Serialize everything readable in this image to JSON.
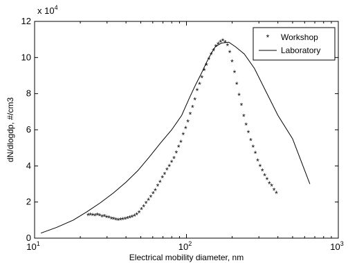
{
  "chart_data": {
    "type": "line",
    "xlabel": "Electrical mobility diameter, nm",
    "ylabel": "dN/dlogdp, #/cm3",
    "x_scale": "log",
    "xlim": [
      10,
      1000
    ],
    "ylim": [
      0,
      120000
    ],
    "y_multiplier_label": "x 10",
    "y_multiplier_exp": "4",
    "grid": false,
    "legend_position": "top-right",
    "x_ticks": [
      {
        "base": "10",
        "exp": "1",
        "value": 10
      },
      {
        "base": "10",
        "exp": "2",
        "value": 100
      },
      {
        "base": "10",
        "exp": "3",
        "value": 1000
      }
    ],
    "y_ticks": [
      {
        "label": "0",
        "value": 0
      },
      {
        "label": "2",
        "value": 20000
      },
      {
        "label": "4",
        "value": 40000
      },
      {
        "label": "6",
        "value": 60000
      },
      {
        "label": "8",
        "value": 80000
      },
      {
        "label": "10",
        "value": 100000
      },
      {
        "label": "12",
        "value": 120000
      }
    ],
    "series": [
      {
        "name": "Workshop",
        "style": "markers",
        "marker": "*",
        "x": [
          22.5,
          23.3,
          24.1,
          25.0,
          25.9,
          26.8,
          27.8,
          28.8,
          29.8,
          30.9,
          32.0,
          33.1,
          34.3,
          35.5,
          36.8,
          38.1,
          39.5,
          40.9,
          42.4,
          43.9,
          45.5,
          47.1,
          48.8,
          50.5,
          52.3,
          54.2,
          56.2,
          58.2,
          60.3,
          62.4,
          64.7,
          67.0,
          69.4,
          71.8,
          74.4,
          77.1,
          79.9,
          82.7,
          85.7,
          88.8,
          91.9,
          95.2,
          98.7,
          102.2,
          105.9,
          109.7,
          113.6,
          117.7,
          121.9,
          126.3,
          130.9,
          135.6,
          140.4,
          145.5,
          150.7,
          156.1,
          161.7,
          167.5,
          173.5,
          179.7,
          186.2,
          192.9,
          199.8,
          207.0,
          214.4,
          222.1,
          230.1,
          238.4,
          246.9,
          255.8,
          265.0,
          274.5,
          284.4,
          294.6,
          305.2,
          316.1,
          327.5,
          339.3,
          351.5,
          364.1,
          377.2,
          390.7
        ],
        "y": [
          12500,
          12600,
          12400,
          12300,
          12700,
          12300,
          11600,
          11800,
          11200,
          11000,
          10600,
          10300,
          10000,
          9800,
          9900,
          10100,
          10300,
          10700,
          11000,
          11500,
          12100,
          12800,
          14000,
          15600,
          17200,
          19200,
          20800,
          22600,
          24400,
          26100,
          28600,
          30800,
          33300,
          35200,
          37600,
          39500,
          41800,
          44000,
          47100,
          50200,
          53000,
          57200,
          60600,
          64200,
          68400,
          72300,
          76500,
          81600,
          85000,
          88600,
          92700,
          95500,
          98700,
          101500,
          103500,
          105800,
          107200,
          108400,
          109200,
          108200,
          106500,
          102600,
          97500,
          91500,
          85000,
          79000,
          73300,
          67300,
          62400,
          58300,
          53800,
          50300,
          46800,
          42600,
          39600,
          37000,
          34300,
          32200,
          30000,
          28700,
          26300,
          24600
        ]
      },
      {
        "name": "Laboratory",
        "style": "line",
        "x": [
          11,
          14,
          18,
          22,
          27,
          33,
          40,
          48,
          57,
          68,
          80,
          93,
          105,
          115,
          125,
          135,
          145,
          155,
          170,
          190,
          210,
          240,
          280,
          330,
          400,
          500,
          650
        ],
        "y": [
          2800,
          6000,
          10000,
          14500,
          19500,
          25000,
          31000,
          37500,
          45000,
          53000,
          60000,
          68000,
          78000,
          85000,
          91000,
          97000,
          102000,
          106000,
          108000,
          108500,
          106000,
          102000,
          94000,
          82000,
          68000,
          55000,
          30000
        ]
      }
    ]
  }
}
